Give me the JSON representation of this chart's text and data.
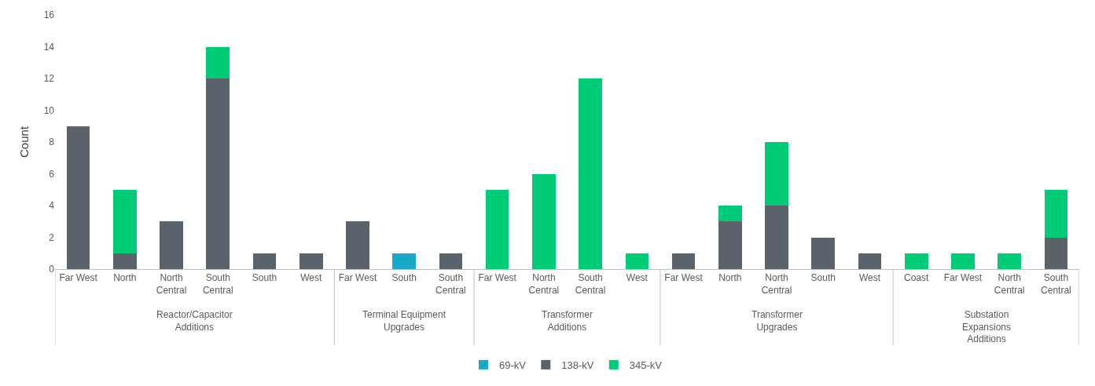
{
  "chart_data": {
    "type": "bar",
    "stacked": true,
    "ylabel": "Count",
    "ylim": [
      0,
      16
    ],
    "yticks": [
      0,
      2,
      4,
      6,
      8,
      10,
      12,
      14,
      16
    ],
    "legend": "bottom",
    "categories": [
      "Far West",
      "North",
      "North Central",
      "South Central",
      "South",
      "West",
      "Far West",
      "South",
      "South Central",
      "Far West",
      "North Central",
      "South Central",
      "West",
      "Far West",
      "North",
      "North Central",
      "South",
      "West",
      "Coast",
      "Far West",
      "North Central",
      "South Central"
    ],
    "annotations": [
      "Reactor/Capacitor\nAdditions",
      "Terminal Equipment\nUpgrades",
      "Transformer\nAdditions",
      "Transformer\nUpgrades",
      "Substation\nExpansions\nAdditions"
    ],
    "series": [
      {
        "name": "69-kV",
        "color": "#19a8c8",
        "values": [
          null,
          null,
          null,
          null,
          null,
          null,
          null,
          1,
          null,
          null,
          null,
          null,
          null,
          null,
          null,
          null,
          null,
          null,
          null,
          null,
          null,
          null
        ]
      },
      {
        "name": "138-kV",
        "color": "#5a636c",
        "values": [
          9,
          1,
          3,
          12,
          1,
          1,
          3,
          null,
          1,
          null,
          null,
          null,
          null,
          1,
          3,
          4,
          2,
          1,
          null,
          null,
          null,
          2
        ]
      },
      {
        "name": "345-kV",
        "color": "#00cc77",
        "values": [
          null,
          4,
          null,
          2,
          null,
          null,
          null,
          null,
          null,
          5,
          6,
          12,
          1,
          null,
          1,
          4,
          null,
          null,
          1,
          1,
          1,
          3
        ]
      }
    ]
  }
}
